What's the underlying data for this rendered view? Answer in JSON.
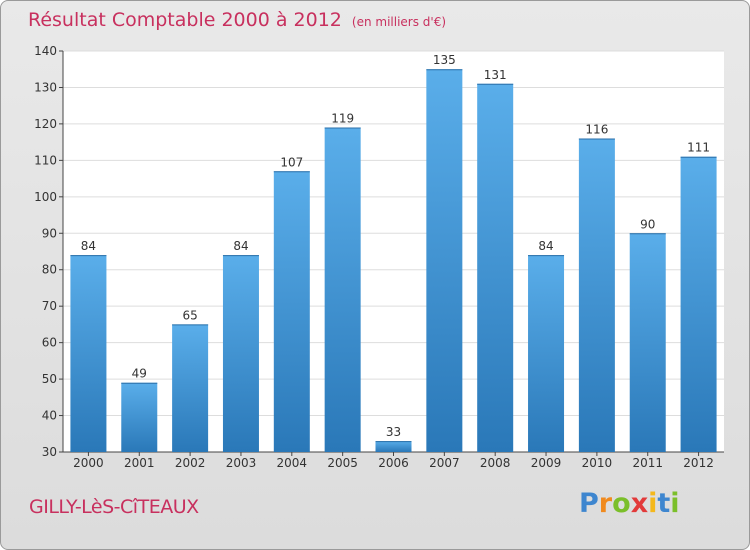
{
  "chart_data": {
    "type": "bar",
    "title": "Résultat Comptable 2000 à 2012",
    "unit_label": "(en milliers d'€)",
    "xlabel": "",
    "ylabel": "",
    "categories": [
      "2000",
      "2001",
      "2002",
      "2003",
      "2004",
      "2005",
      "2006",
      "2007",
      "2008",
      "2009",
      "2010",
      "2011",
      "2012"
    ],
    "values": [
      84,
      49,
      65,
      84,
      107,
      119,
      33,
      135,
      131,
      84,
      116,
      90,
      111
    ],
    "ylim": [
      30,
      140
    ],
    "yticks": [
      30,
      40,
      50,
      60,
      70,
      80,
      90,
      100,
      110,
      120,
      130,
      140
    ],
    "grid": true,
    "bar_color_top": "#5aaeea",
    "bar_color_bottom": "#2a78b8"
  },
  "footer": {
    "town": "GILLY-LèS-CîTEAUX",
    "brand_letters": [
      {
        "char": "P",
        "color": "#3e86cf"
      },
      {
        "char": "r",
        "color": "#f08a1e"
      },
      {
        "char": "o",
        "color": "#7bbf2a"
      },
      {
        "char": "x",
        "color": "#e23a3a"
      },
      {
        "char": "i",
        "color": "#f4b81c"
      },
      {
        "char": "t",
        "color": "#3e86cf"
      },
      {
        "char": "i",
        "color": "#7bbf2a"
      }
    ]
  }
}
